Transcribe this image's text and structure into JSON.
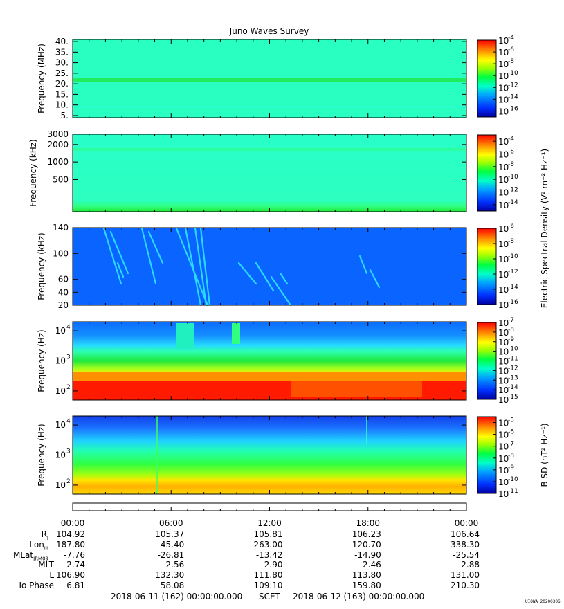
{
  "chart_data": [
    {
      "type": "heatmap",
      "title": "Juno Waves Survey",
      "ylabel": "Frequency (MHz)",
      "y_ticks": [
        "40.",
        "35.",
        "30.",
        "25.",
        "20.",
        "15.",
        "10.",
        "5."
      ],
      "y_scale": "linear",
      "ylim": [
        4,
        41
      ],
      "colorbar_ticks": [
        "-4",
        "-6",
        "-8",
        "-10",
        "-12",
        "-14",
        "-16"
      ],
      "colorbar_range": [
        -17,
        -4
      ]
    },
    {
      "type": "heatmap",
      "ylabel": "Frequency (kHz)",
      "y_ticks": [
        "3000",
        "2000",
        "1000",
        "500"
      ],
      "y_scale": "log",
      "ylim": [
        140,
        3000
      ],
      "colorbar_ticks": [
        "-4",
        "-6",
        "-8",
        "-10",
        "-12",
        "-14"
      ],
      "colorbar_range": [
        -15,
        -3
      ]
    },
    {
      "type": "heatmap",
      "ylabel": "Frequency (kHz)",
      "y_ticks": [
        "140",
        "100",
        "60",
        "40",
        "20"
      ],
      "y_scale": "linear",
      "ylim": [
        20,
        140
      ],
      "colorbar_ticks": [
        "-6",
        "-8",
        "-10",
        "-12",
        "-14",
        "-16"
      ],
      "colorbar_range": [
        -16,
        -6
      ],
      "colorbar_label": "Electric Spectral Density (V² m⁻² Hz⁻¹)"
    },
    {
      "type": "heatmap",
      "ylabel": "Frequency (Hz)",
      "y_ticks": [
        "4",
        "3",
        "2"
      ],
      "y_scale": "log",
      "ylim": [
        50,
        20000
      ],
      "colorbar_ticks": [
        "-7",
        "-8",
        "-9",
        "-10",
        "-11",
        "-12",
        "-13",
        "-14",
        "-15"
      ],
      "colorbar_range": [
        -15,
        -7
      ]
    },
    {
      "type": "heatmap",
      "ylabel": "Frequency (Hz)",
      "y_ticks": [
        "4",
        "3",
        "2"
      ],
      "y_scale": "log",
      "ylim": [
        50,
        20000
      ],
      "colorbar_ticks": [
        "-5",
        "-6",
        "-7",
        "-8",
        "-9",
        "-10",
        "-11"
      ],
      "colorbar_range": [
        -11,
        -4.5
      ],
      "colorbar_label": "B SD (nT² Hz⁻¹)"
    }
  ],
  "time_axis": {
    "tick_labels": [
      "00:00",
      "06:00",
      "12:00",
      "18:00",
      "00:00"
    ],
    "hours": [
      0,
      6,
      12,
      18,
      24
    ]
  },
  "ephemeris": [
    {
      "label": "R",
      "sub": "J",
      "values": [
        "104.92",
        "105.37",
        "105.81",
        "106.23",
        "106.64"
      ]
    },
    {
      "label": "Lon",
      "sub": "III",
      "values": [
        "187.80",
        "45.40",
        "263.00",
        "120.70",
        "338.30"
      ]
    },
    {
      "label": "MLat",
      "sub": "JRM09",
      "values": [
        "-7.76",
        "-26.81",
        "-13.42",
        "-14.90",
        "-25.54"
      ]
    },
    {
      "label": "MLT",
      "sub": "",
      "values": [
        "2.74",
        "2.56",
        "2.90",
        "2.46",
        "2.88"
      ]
    },
    {
      "label": "L",
      "sub": "",
      "values": [
        "106.90",
        "132.30",
        "111.80",
        "113.80",
        "131.00"
      ]
    },
    {
      "label": "Io Phase",
      "sub": "",
      "values": [
        "6.81",
        "58.08",
        "109.10",
        "159.80",
        "210.30"
      ]
    }
  ],
  "footer": {
    "start": "2018-06-11 (162) 00:00:00.000",
    "scet": "SCET",
    "end": "2018-06-12 (163) 00:00:00.000"
  },
  "stamp": "UIOWA 20200306",
  "colors": {
    "cmap": [
      "#0000a0",
      "#0050ff",
      "#00c8ff",
      "#00ff7f",
      "#7fff00",
      "#ffff00",
      "#ff8c00",
      "#ff0000"
    ]
  }
}
